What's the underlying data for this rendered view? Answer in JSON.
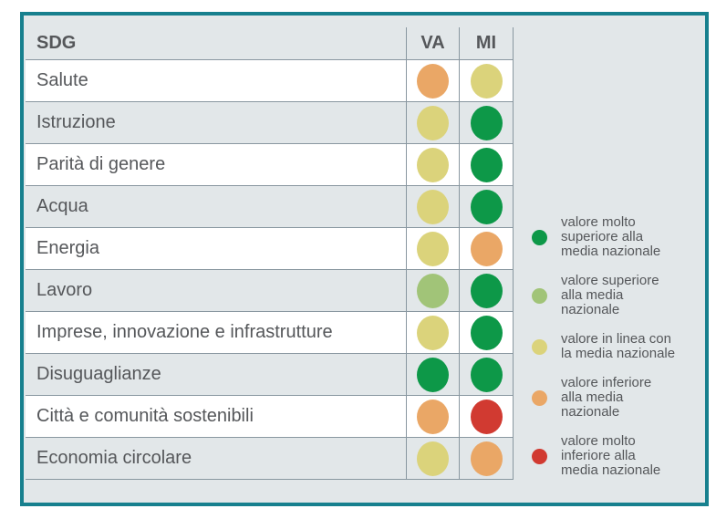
{
  "panel": {
    "border_color": "#17808E",
    "background": "#E2E7E9",
    "grid_line_color": "#8997A0",
    "text_color": "#55575A",
    "row_alt_background": "#FFFFFF"
  },
  "header": {
    "sdg": "SDG",
    "va": "VA",
    "mi": "MI"
  },
  "colors": {
    "molto-superiore": "#0D9848",
    "superiore": "#A1C478",
    "in-linea": "#DBD37B",
    "inferiore": "#EAA766",
    "molto-inferiore": "#D13A31"
  },
  "chart_data": {
    "type": "table",
    "title": "",
    "columns": [
      "SDG",
      "VA",
      "MI"
    ],
    "categories": [
      "Salute",
      "Istruzione",
      "Parità di genere",
      "Acqua",
      "Energia",
      "Lavoro",
      "Imprese, innovazione e infrastrutture",
      "Disuguaglianze",
      "Città e comunità sostenibili",
      "Economia circolare"
    ],
    "series": [
      {
        "name": "VA",
        "values": [
          "inferiore",
          "in-linea",
          "in-linea",
          "in-linea",
          "in-linea",
          "superiore",
          "in-linea",
          "molto-superiore",
          "inferiore",
          "in-linea"
        ]
      },
      {
        "name": "MI",
        "values": [
          "in-linea",
          "molto-superiore",
          "molto-superiore",
          "molto-superiore",
          "inferiore",
          "molto-superiore",
          "molto-superiore",
          "molto-superiore",
          "molto-inferiore",
          "inferiore"
        ]
      }
    ],
    "legend_position": "right",
    "legend": [
      {
        "level": "molto-superiore",
        "color": "#0D9848",
        "label": "valore molto superiore alla media nazionale",
        "lines": [
          "valore molto",
          "superiore alla",
          "media nazionale"
        ]
      },
      {
        "level": "superiore",
        "color": "#A1C478",
        "label": "valore superiore alla media nazionale",
        "lines": [
          "valore superiore",
          "alla media",
          "nazionale"
        ]
      },
      {
        "level": "in-linea",
        "color": "#DBD37B",
        "label": "valore in linea con la media nazionale",
        "lines": [
          "valore in linea con",
          "la media nazionale"
        ]
      },
      {
        "level": "inferiore",
        "color": "#EAA766",
        "label": "valore inferiore alla media nazionale",
        "lines": [
          "valore inferiore",
          "alla media",
          "nazionale"
        ]
      },
      {
        "level": "molto-inferiore",
        "color": "#D13A31",
        "label": "valore molto inferiore alla media nazionale",
        "lines": [
          "valore molto",
          "inferiore alla",
          "media nazionale"
        ]
      }
    ]
  }
}
